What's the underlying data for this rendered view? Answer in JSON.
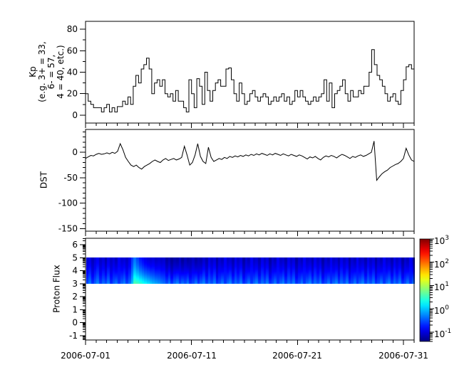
{
  "figure": {
    "background": "#ffffff",
    "axis_color": "#000000",
    "series_color": "#000000"
  },
  "x_axis": {
    "type": "time",
    "range_days": 31,
    "minor_tick_every_days": 1,
    "major_tick_days": [
      0,
      10,
      20,
      30
    ],
    "major_tick_labels": [
      "2006-07-01",
      "2006-07-11",
      "2006-07-21",
      "2006-07-31"
    ]
  },
  "chart_data": [
    {
      "panel": "kp",
      "type": "line",
      "style": "step",
      "ylabel_lines": [
        "Kp",
        "(e.g. 3+ = 33,",
        "6- = 57,",
        "4 = 40, etc.)"
      ],
      "ylim": [
        -7.3,
        87.3
      ],
      "yticks": [
        0,
        20,
        40,
        60,
        80
      ],
      "y_minor_step": 10,
      "sample_interval_hours": 6,
      "x_start_label": "2006-07-01",
      "values": [
        20,
        13,
        10,
        7,
        7,
        7,
        3,
        7,
        10,
        3,
        7,
        3,
        8,
        8,
        13,
        10,
        17,
        10,
        27,
        37,
        30,
        43,
        47,
        53,
        43,
        20,
        30,
        33,
        27,
        33,
        20,
        17,
        20,
        13,
        23,
        13,
        13,
        7,
        3,
        33,
        20,
        7,
        34,
        27,
        10,
        40,
        23,
        13,
        23,
        30,
        33,
        27,
        27,
        43,
        44,
        33,
        20,
        13,
        30,
        20,
        10,
        13,
        20,
        23,
        17,
        13,
        17,
        20,
        17,
        10,
        13,
        17,
        13,
        17,
        20,
        13,
        17,
        10,
        13,
        23,
        17,
        23,
        17,
        13,
        10,
        13,
        17,
        13,
        17,
        20,
        33,
        13,
        30,
        7,
        20,
        23,
        27,
        33,
        20,
        13,
        23,
        17,
        17,
        23,
        20,
        27,
        27,
        40,
        61,
        47,
        37,
        33,
        27,
        20,
        13,
        17,
        20,
        13,
        10,
        23,
        33,
        45,
        47,
        43
      ]
    },
    {
      "panel": "dst",
      "type": "line",
      "style": "linear",
      "ylabel_lines": [
        "DST"
      ],
      "ylim": [
        -155,
        45
      ],
      "yticks": [
        0,
        -50,
        -100,
        -150
      ],
      "y_minor_step": 10,
      "sample_interval_hours": 6,
      "x_start_label": "2006-07-01",
      "values": [
        -12,
        -9,
        -6,
        -7,
        -4,
        -2,
        -4,
        -3,
        -1,
        -3,
        0,
        -2,
        2,
        17,
        5,
        -10,
        -18,
        -25,
        -28,
        -25,
        -30,
        -33,
        -28,
        -25,
        -22,
        -18,
        -15,
        -18,
        -20,
        -15,
        -12,
        -16,
        -14,
        -12,
        -15,
        -13,
        -10,
        12,
        -5,
        -25,
        -20,
        -5,
        17,
        -8,
        -18,
        -22,
        10,
        -10,
        -18,
        -15,
        -12,
        -14,
        -10,
        -12,
        -8,
        -10,
        -7,
        -9,
        -6,
        -8,
        -5,
        -7,
        -4,
        -6,
        -3,
        -5,
        -2,
        -4,
        -6,
        -3,
        -5,
        -2,
        -4,
        -6,
        -3,
        -5,
        -7,
        -4,
        -6,
        -8,
        -5,
        -7,
        -10,
        -13,
        -9,
        -11,
        -8,
        -12,
        -15,
        -10,
        -7,
        -9,
        -6,
        -8,
        -11,
        -7,
        -4,
        -6,
        -9,
        -12,
        -8,
        -10,
        -7,
        -5,
        -8,
        -6,
        -3,
        0,
        22,
        -55,
        -48,
        -42,
        -38,
        -35,
        -30,
        -27,
        -24,
        -22,
        -18,
        -12,
        8,
        -5,
        -15,
        -18
      ]
    },
    {
      "panel": "proton_flux",
      "type": "heatmap",
      "ylabel_lines": [
        "Proton Flux"
      ],
      "ylim": [
        -1.33,
        6.5
      ],
      "yticks": [
        -1,
        0,
        1,
        2,
        3,
        4,
        5,
        6
      ],
      "y_minor": "log",
      "band_y": [
        3,
        5
      ],
      "sample_interval_hours": 6,
      "log10_flux_at_band_bottom": [
        -0.55,
        -0.3,
        -0.62,
        -0.42,
        -0.25,
        -0.58,
        -0.38,
        -0.5,
        -0.28,
        -0.65,
        -0.45,
        -0.33,
        -0.6,
        -0.4,
        -0.27,
        -0.55,
        -0.35,
        0.0,
        0.6,
        0.55,
        0.45,
        0.35,
        0.25,
        0.15,
        0.05,
        -0.05,
        -0.12,
        -0.2,
        -0.28,
        -0.35,
        -0.5,
        -0.3,
        -0.6,
        -0.38,
        -0.25,
        -0.55,
        -0.35,
        -0.48,
        -0.28,
        -0.62,
        -0.5,
        -0.3,
        -0.6,
        -0.38,
        -0.25,
        -0.55,
        -0.35,
        -0.48,
        -0.28,
        -0.62,
        -0.5,
        -0.3,
        -0.6,
        -0.38,
        -0.25,
        -0.55,
        -0.35,
        -0.48,
        -0.28,
        -0.62,
        -0.5,
        -0.3,
        -0.6,
        -0.38,
        -0.25,
        -0.55,
        -0.35,
        -0.48,
        -0.28,
        -0.62,
        -0.5,
        -0.3,
        -0.6,
        -0.38,
        -0.25,
        -0.55,
        -0.35,
        -0.48,
        -0.28,
        -0.62,
        -0.5,
        -0.3,
        -0.6,
        -0.38,
        -0.25,
        -0.55,
        -0.35,
        -0.48,
        -0.28,
        -0.62,
        -0.5,
        -0.3,
        -0.6,
        -0.38,
        -0.25,
        -0.55,
        -0.35,
        -0.48,
        -0.28,
        -0.62,
        -0.5,
        -0.3,
        -0.6,
        -0.38,
        -0.25,
        -0.55,
        -0.35,
        -0.48,
        -0.28,
        -0.62,
        -0.5,
        -0.3,
        -0.6,
        -0.38,
        -0.25,
        -0.55,
        -0.35,
        -0.48,
        -0.28,
        -0.62,
        -0.5,
        -0.3,
        -0.6,
        -0.38
      ],
      "log10_flux_at_band_top": [
        -1.05,
        -0.95,
        -1.15,
        -1.0,
        -0.9,
        -1.1,
        -1.0,
        -1.2,
        -0.95,
        -1.1,
        -1.0,
        -1.15,
        -0.9,
        -1.05,
        -1.0,
        -1.1,
        -0.95,
        -0.6,
        -0.35,
        -0.55,
        -0.75,
        -0.85,
        -0.95,
        -1.0,
        -1.05,
        -1.0,
        -1.1,
        -1.05,
        -1.1,
        -1.05,
        -1.25,
        -1.15,
        -1.3,
        -1.2,
        -1.25,
        -1.1,
        -1.3,
        -1.15,
        -1.25,
        -1.2,
        -1.1,
        -1.25,
        -1.15,
        -1.2,
        -1.05,
        -1.2,
        -0.95,
        -1.1,
        -1.0,
        -1.25,
        -1.05,
        -1.15,
        -0.9,
        -1.1,
        -1.05,
        -1.2,
        -0.95,
        -1.1,
        -1.0,
        -1.25,
        -1.05,
        -1.15,
        -0.9,
        -1.1,
        -1.05,
        -1.2,
        -0.95,
        -1.1,
        -1.0,
        -1.25,
        -1.05,
        -1.15,
        -0.9,
        -1.1,
        -1.05,
        -1.2,
        -0.95,
        -1.1,
        -1.0,
        -1.25,
        -1.05,
        -1.15,
        -0.9,
        -1.1,
        -1.05,
        -1.2,
        -0.95,
        -1.1,
        -1.0,
        -1.25,
        -1.05,
        -1.15,
        -0.9,
        -1.1,
        -1.05,
        -1.2,
        -0.95,
        -1.1,
        -1.0,
        -1.25,
        -1.05,
        -1.15,
        -0.9,
        -1.1,
        -1.05,
        -1.2,
        -0.95,
        -1.1,
        -1.0,
        -1.25,
        -1.05,
        -1.15,
        -0.9,
        -1.1,
        -1.05,
        -1.2,
        -0.95,
        -1.1,
        -1.0,
        -1.25,
        -1.05,
        -1.15,
        -0.9,
        -1.1
      ],
      "colorbar": {
        "scale": "log10",
        "colormap": "jet",
        "range_log10": [
          -1.4,
          3
        ],
        "ticks": [
          {
            "base": "10",
            "exp": "3"
          },
          {
            "base": "10",
            "exp": "2"
          },
          {
            "base": "10",
            "exp": "1"
          },
          {
            "base": "10",
            "exp": "0"
          },
          {
            "base": "10",
            "exp": "-1"
          }
        ]
      }
    }
  ]
}
